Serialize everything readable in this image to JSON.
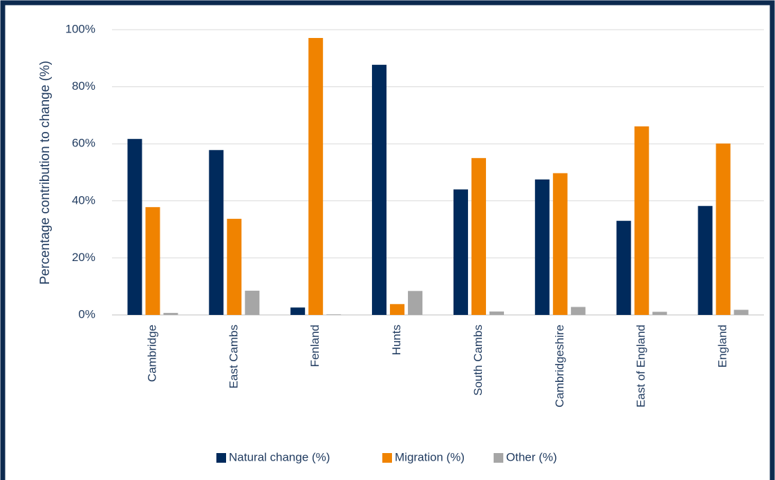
{
  "chart_data": {
    "type": "bar",
    "ylabel": "Percentage contribution to change (%)",
    "categories": [
      "Cambridge",
      "East Cambs",
      "Fenland",
      "Hunts",
      "South Cambs",
      "Cambridgeshire",
      "East of England",
      "England"
    ],
    "series": [
      {
        "name": "Natural change (%)",
        "color": "#002a5c",
        "values": [
          61.7,
          57.8,
          2.6,
          87.7,
          44,
          47.5,
          33,
          38.2
        ]
      },
      {
        "name": "Migration (%)",
        "color": "#f08300",
        "values": [
          37.8,
          33.7,
          97.1,
          3.8,
          55,
          49.7,
          66.1,
          60.1
        ]
      },
      {
        "name": "Other (%)",
        "color": "#a6a6a6",
        "values": [
          0.7,
          8.5,
          0.2,
          8.4,
          1.2,
          2.8,
          1.1,
          1.8
        ]
      }
    ],
    "ylim": [
      0,
      100
    ],
    "yticks": [
      {
        "value": 0,
        "label": "0%"
      },
      {
        "value": 20,
        "label": "20%"
      },
      {
        "value": 40,
        "label": "40%"
      },
      {
        "value": 60,
        "label": "60%"
      },
      {
        "value": 80,
        "label": "80%"
      },
      {
        "value": 100,
        "label": "100%"
      }
    ],
    "grid": true,
    "legend": "bottom"
  }
}
